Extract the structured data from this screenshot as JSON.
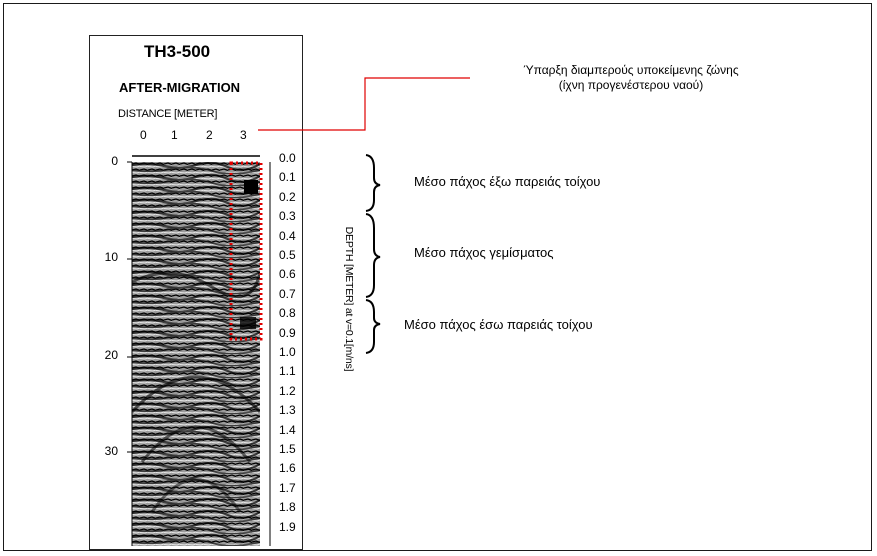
{
  "figure": {
    "title": "TH3-500",
    "subtitle": "AFTER-MIGRATION",
    "distance_label": "DISTANCE [METER]",
    "distance_ticks": [
      "0",
      "1",
      "2",
      "3"
    ],
    "left_ticks": [
      "0",
      "10",
      "20",
      "30"
    ],
    "depth_ticks": [
      "0.0",
      "0.1",
      "0.2",
      "0.3",
      "0.4",
      "0.5",
      "0.6",
      "0.7",
      "0.8",
      "0.9",
      "1.0",
      "1.1",
      "1.2",
      "1.3",
      "1.4",
      "1.5",
      "1.6",
      "1.7",
      "1.8",
      "1.9"
    ],
    "depth_label": "DEPTH [METER] at v=0.1[m/ns]"
  },
  "annotations": {
    "top_line1": "Ύπαρξη διαμπερούς υποκείμενης ζώνης",
    "top_line2": "(ίχνη προγενέστερου ναού)",
    "outer_wall": "Μέσο πάχος έξω παρειάς τοίχου",
    "fill": "Μέσο πάχος γεμίσματος",
    "inner_wall": "Μέσο πάχος έσω παρειάς τοίχου"
  },
  "colors": {
    "highlight": "#e00000",
    "ink": "#000000"
  }
}
